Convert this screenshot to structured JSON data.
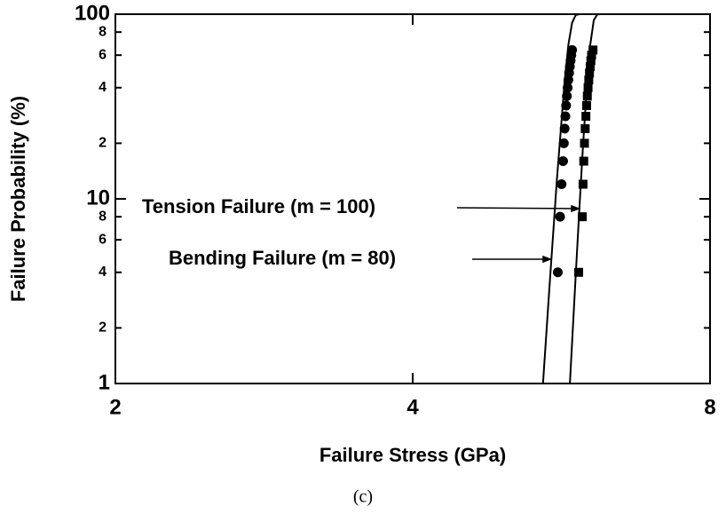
{
  "chart_data": {
    "type": "scatter",
    "xlabel": "Failure Stress (GPa)",
    "ylabel": "Failure Probability (%)",
    "caption": "(c)",
    "log_x": true,
    "log_y": true,
    "xlim": [
      2,
      8
    ],
    "xticks": [
      2,
      4,
      8
    ],
    "ylim": [
      1,
      100
    ],
    "yticks": [
      1,
      2,
      4,
      6,
      8,
      10,
      {
        "value": 20,
        "label": "2"
      },
      {
        "value": 40,
        "label": "4"
      },
      {
        "value": 60,
        "label": "6"
      },
      {
        "value": 80,
        "label": "8"
      },
      100
    ],
    "color": "#000000",
    "series": [
      {
        "marker": "circle",
        "x": [
          5.61,
          5.64,
          5.66,
          5.68,
          5.69,
          5.7,
          5.71,
          5.72,
          5.73,
          5.74,
          5.75,
          5.76,
          5.77,
          5.78,
          5.79,
          5.8
        ],
        "values": [
          4,
          8,
          12,
          16,
          20,
          24,
          28,
          32,
          36,
          40,
          44,
          48,
          52,
          56,
          60,
          64
        ]
      },
      {
        "marker": "square",
        "x": [
          5.89,
          5.94,
          5.95,
          5.96,
          5.97,
          5.98,
          5.99,
          6.0,
          6.01,
          6.02,
          6.03,
          6.04,
          6.05,
          6.06,
          6.07,
          6.09
        ],
        "values": [
          4,
          8,
          12,
          16,
          20,
          24,
          28,
          32,
          36,
          40,
          44,
          48,
          52,
          56,
          60,
          64
        ]
      }
    ],
    "fits": [
      {
        "x": [
          5.42,
          5.5,
          5.6,
          5.7,
          5.75,
          5.8,
          5.85,
          5.9,
          6.45
        ],
        "values": [
          1,
          3.23,
          12.96,
          43.5,
          68.3,
          89.96,
          98.96,
          99.99,
          100
        ]
      },
      {
        "x": [
          5.77,
          5.85,
          5.9,
          5.95,
          6.0,
          6.05,
          6.1,
          6.15,
          6.2,
          6.48
        ],
        "values": [
          1,
          3.88,
          8.85,
          19.4,
          39.2,
          68.0,
          92.6,
          99.72,
          100,
          100
        ]
      }
    ],
    "annotations": [
      "Tension Failure (m = 100)",
      "Bending Failure (m = 80)"
    ]
  }
}
